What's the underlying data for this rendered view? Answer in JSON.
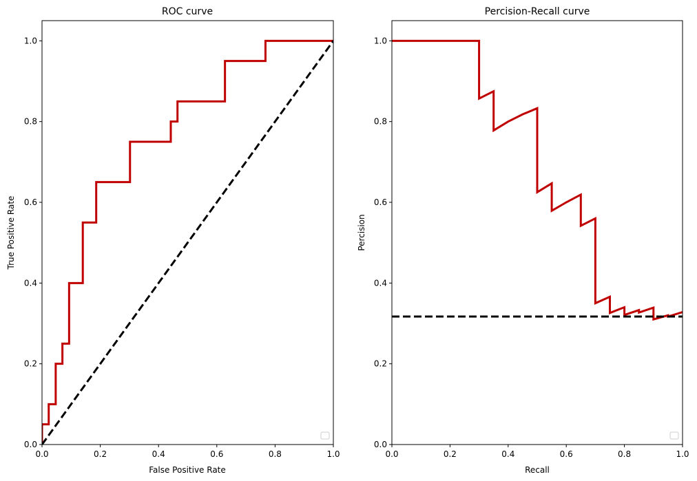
{
  "chart_data": [
    {
      "type": "line",
      "title": "ROC curve",
      "xlabel": "False Positive Rate",
      "ylabel": "True Positive Rate",
      "xlim": [
        0,
        1
      ],
      "ylim": [
        0,
        1.05
      ],
      "xticks": [
        "0.0",
        "0.2",
        "0.4",
        "0.6",
        "0.8",
        "1.0"
      ],
      "yticks": [
        "0.0",
        "0.2",
        "0.4",
        "0.6",
        "0.8",
        "1.0"
      ],
      "grid": false,
      "legend": "lower-right",
      "series": [
        {
          "style": "solid",
          "color": "#c00000",
          "x": [
            0,
            0,
            0.023,
            0.023,
            0.047,
            0.047,
            0.07,
            0.07,
            0.093,
            0.093,
            0.14,
            0.14,
            0.186,
            0.186,
            0.302,
            0.302,
            0.442,
            0.442,
            0.465,
            0.465,
            0.628,
            0.628,
            0.767,
            0.767,
            1.0
          ],
          "y": [
            0,
            0.05,
            0.05,
            0.1,
            0.1,
            0.2,
            0.2,
            0.25,
            0.25,
            0.4,
            0.4,
            0.55,
            0.55,
            0.65,
            0.65,
            0.75,
            0.75,
            0.8,
            0.8,
            0.85,
            0.85,
            0.95,
            0.95,
            1.0,
            1.0
          ]
        },
        {
          "style": "dashed",
          "color": "#000000",
          "x": [
            0,
            1
          ],
          "y": [
            0,
            1
          ]
        }
      ]
    },
    {
      "type": "line",
      "title": "Percision-Recall curve",
      "xlabel": "Recall",
      "ylabel": "Percision",
      "xlim": [
        0,
        1
      ],
      "ylim": [
        0,
        1.05
      ],
      "xticks": [
        "0.0",
        "0.2",
        "0.4",
        "0.6",
        "0.8",
        "1.0"
      ],
      "yticks": [
        "0.0",
        "0.2",
        "0.4",
        "0.6",
        "0.8",
        "1.0"
      ],
      "grid": false,
      "legend": "lower-right",
      "series": [
        {
          "style": "solid",
          "color": "#c00000",
          "x": [
            0,
            0.3,
            0.3,
            0.35,
            0.35,
            0.4,
            0.45,
            0.5,
            0.5,
            0.55,
            0.55,
            0.6,
            0.65,
            0.65,
            0.7,
            0.7,
            0.75,
            0.75,
            0.8,
            0.8,
            0.85,
            0.85,
            0.9,
            0.9,
            0.95,
            0.95,
            1.0
          ],
          "y": [
            1.0,
            1.0,
            0.857,
            0.875,
            0.778,
            0.8,
            0.818,
            0.833,
            0.625,
            0.647,
            0.579,
            0.6,
            0.619,
            0.542,
            0.56,
            0.35,
            0.366,
            0.326,
            0.34,
            0.321,
            0.333,
            0.327,
            0.339,
            0.31,
            0.32,
            0.317,
            0.328
          ]
        },
        {
          "style": "dashed",
          "color": "#000000",
          "x": [
            0,
            1
          ],
          "y": [
            0.317,
            0.317
          ]
        }
      ]
    }
  ]
}
